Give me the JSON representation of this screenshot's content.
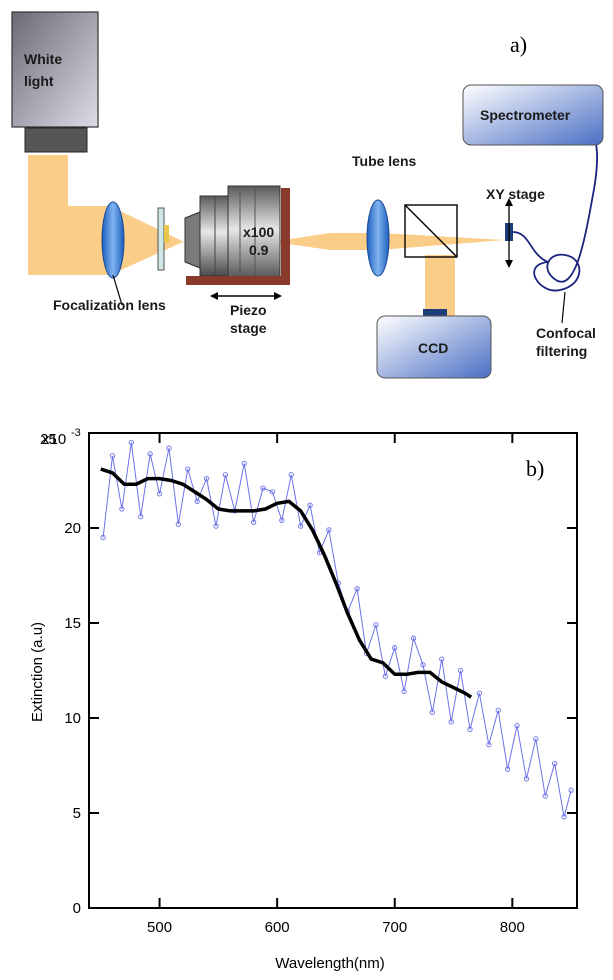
{
  "panel_a": {
    "label": "a)",
    "white_light": [
      "White",
      "light"
    ],
    "focalization_lens": "Focalization lens",
    "objective": [
      "x100",
      "0.9"
    ],
    "piezo_stage": [
      "Piezo",
      "stage"
    ],
    "tube_lens": "Tube lens",
    "xy_stage": "XY stage",
    "spectrometer": "Spectrometer",
    "ccd": "CCD",
    "confocal_filtering": [
      "Confocal",
      "filtering"
    ]
  },
  "chart_data": {
    "type": "line",
    "panel_label": "b)",
    "xlabel": "Wavelength(nm)",
    "ylabel": "Extinction (a.u)",
    "xlim": [
      440,
      855
    ],
    "ylim": [
      0,
      25
    ],
    "y_exponent_label": "x10",
    "y_exponent": "-3",
    "xticks": [
      500,
      600,
      700,
      800
    ],
    "yticks": [
      0,
      5,
      10,
      15,
      20,
      25
    ],
    "colors": {
      "raw": "#6b72e8",
      "smooth": "#000000"
    },
    "series": [
      {
        "values_kind": "raw",
        "x": [
          452,
          460,
          468,
          476,
          484,
          492,
          500,
          508,
          516,
          524,
          532,
          540,
          548,
          556,
          564,
          572,
          580,
          588,
          596,
          604,
          612,
          620,
          628,
          636,
          644,
          652,
          660,
          668,
          676,
          684,
          692,
          700,
          708,
          716,
          724,
          732,
          740,
          748,
          756,
          764,
          772,
          780,
          788,
          796,
          804,
          812,
          820,
          828,
          836,
          844,
          850
        ],
        "y": [
          19.5,
          23.8,
          21.0,
          24.5,
          20.6,
          23.9,
          21.8,
          24.2,
          20.2,
          23.1,
          21.4,
          22.6,
          20.1,
          22.8,
          20.9,
          23.4,
          20.3,
          22.1,
          21.9,
          20.4,
          22.8,
          20.1,
          21.2,
          18.7,
          19.9,
          17.1,
          15.6,
          16.8,
          13.4,
          14.9,
          12.2,
          13.7,
          11.4,
          14.2,
          12.8,
          10.3,
          13.1,
          9.8,
          12.5,
          9.4,
          11.3,
          8.6,
          10.4,
          7.3,
          9.6,
          6.8,
          8.9,
          5.9,
          7.6,
          4.8,
          6.2
        ]
      },
      {
        "values_kind": "smoothed",
        "x": [
          450,
          460,
          470,
          480,
          490,
          500,
          510,
          520,
          530,
          540,
          550,
          560,
          570,
          580,
          590,
          600,
          610,
          620,
          630,
          640,
          650,
          660,
          670,
          680,
          690,
          700,
          710,
          720,
          730,
          740,
          750,
          760,
          765
        ],
        "y": [
          23.1,
          22.9,
          22.3,
          22.3,
          22.6,
          22.6,
          22.5,
          22.3,
          21.9,
          21.5,
          21.0,
          20.9,
          20.9,
          20.9,
          21.0,
          21.3,
          21.4,
          20.9,
          19.9,
          18.6,
          17.1,
          15.5,
          14.1,
          13.1,
          12.9,
          12.3,
          12.3,
          12.4,
          12.4,
          11.9,
          11.6,
          11.3,
          11.1
        ]
      }
    ]
  }
}
